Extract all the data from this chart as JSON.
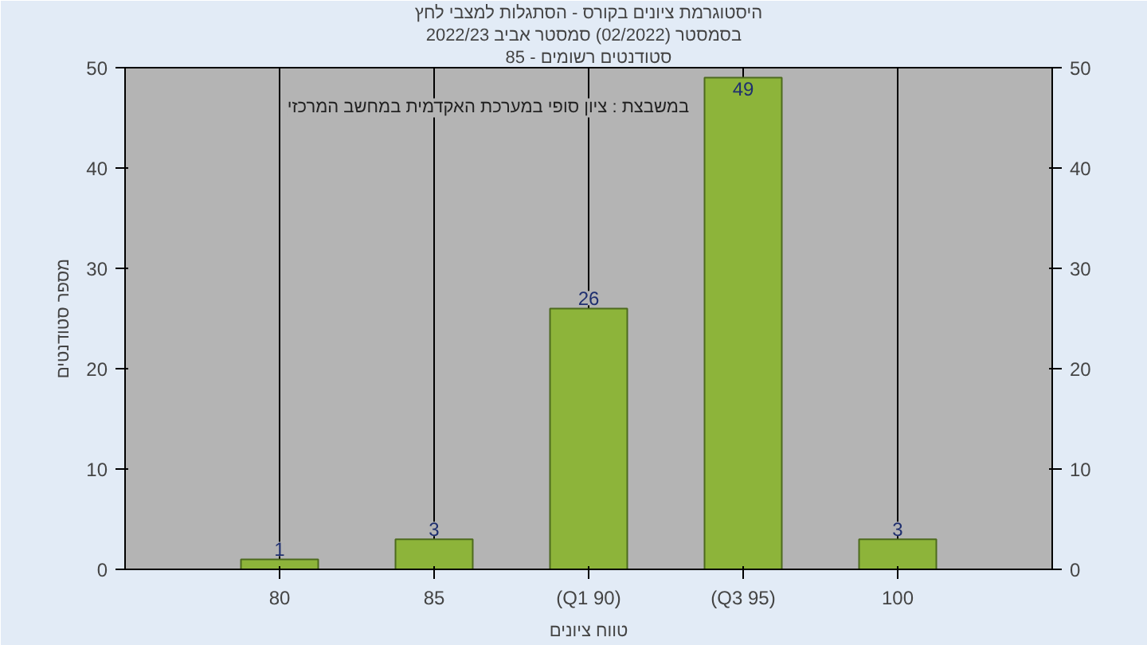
{
  "chart_data": {
    "type": "bar",
    "title": "היסטוגרמת ציונים בקורס - הסתגלות למצבי לחץ",
    "subtitle": "בסמסטר  (02/2022)  סמסטר אביב 2022/23",
    "xlabel": "טווח ציונים",
    "ylabel": "מספר סטודנטים",
    "categories": [
      "80",
      "85",
      "(Q1 90)",
      "(Q3 95)",
      "100"
    ],
    "values": [
      1,
      3,
      26,
      49,
      3
    ],
    "color": "#8db43a",
    "ylim": [
      0,
      50
    ],
    "yticks": [
      0,
      10,
      20,
      30,
      40,
      50
    ],
    "y2lim": [
      0,
      50
    ],
    "y2ticks": [
      0,
      10,
      20,
      30,
      40,
      50
    ],
    "data_labels": true,
    "grid": "x",
    "annotations": [
      "סטודנטים רשומים - 85",
      "במשבצת : ציון סופי במערכת האקדמית במחשב המרכזי"
    ]
  }
}
